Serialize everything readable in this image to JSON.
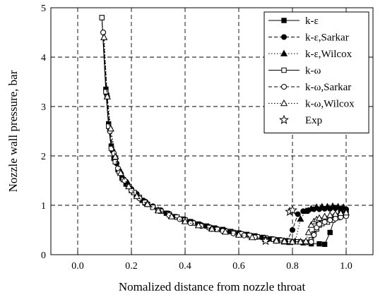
{
  "chart_data": {
    "type": "line",
    "title": "",
    "xlabel": "Nomalized distance from nozzle throat",
    "ylabel": "Nozzle wall pressure, bar",
    "xlim": [
      -0.1,
      1.1
    ],
    "ylim": [
      0,
      5
    ],
    "x_ticks": [
      0.0,
      0.2,
      0.4,
      0.6,
      0.8,
      1.0
    ],
    "x_tick_labels": [
      "0.0",
      "0.2",
      "0.4",
      "0.6",
      "0.8",
      "1.0"
    ],
    "y_ticks": [
      0,
      1,
      2,
      3,
      4,
      5
    ],
    "y_tick_labels": [
      "0",
      "1",
      "2",
      "3",
      "4",
      "5"
    ],
    "grid": "dashed",
    "legend_position": "top-right",
    "series": [
      {
        "name": "k-ε",
        "line": "solid",
        "marker": "square-filled",
        "x": [
          0.09,
          0.105,
          0.115,
          0.125,
          0.135,
          0.15,
          0.165,
          0.18,
          0.2,
          0.22,
          0.24,
          0.26,
          0.28,
          0.3,
          0.33,
          0.36,
          0.39,
          0.42,
          0.45,
          0.48,
          0.51,
          0.54,
          0.57,
          0.6,
          0.63,
          0.66,
          0.69,
          0.72,
          0.75,
          0.78,
          0.81,
          0.84,
          0.87,
          0.9,
          0.92,
          0.94,
          0.96,
          0.98,
          1.0
        ],
        "values": [
          4.8,
          3.35,
          2.65,
          2.2,
          1.95,
          1.72,
          1.55,
          1.43,
          1.3,
          1.2,
          1.1,
          1.02,
          0.96,
          0.9,
          0.84,
          0.77,
          0.72,
          0.67,
          0.62,
          0.58,
          0.54,
          0.51,
          0.47,
          0.44,
          0.41,
          0.38,
          0.35,
          0.32,
          0.3,
          0.28,
          0.26,
          0.24,
          0.22,
          0.22,
          0.21,
          0.45,
          0.78,
          0.85,
          0.88
        ]
      },
      {
        "name": "k-ε,Sarkar",
        "line": "dashed",
        "marker": "circle-filled",
        "x": [
          0.095,
          0.108,
          0.12,
          0.13,
          0.145,
          0.16,
          0.18,
          0.2,
          0.22,
          0.25,
          0.28,
          0.31,
          0.34,
          0.37,
          0.4,
          0.43,
          0.46,
          0.49,
          0.52,
          0.55,
          0.58,
          0.61,
          0.64,
          0.67,
          0.7,
          0.73,
          0.76,
          0.78,
          0.8,
          0.82,
          0.84,
          0.86,
          0.88,
          0.9,
          0.92,
          0.94,
          0.96,
          0.98,
          1.0
        ],
        "values": [
          4.5,
          3.25,
          2.55,
          2.1,
          1.85,
          1.65,
          1.48,
          1.33,
          1.23,
          1.08,
          0.98,
          0.9,
          0.83,
          0.76,
          0.71,
          0.65,
          0.6,
          0.56,
          0.52,
          0.49,
          0.45,
          0.42,
          0.39,
          0.36,
          0.33,
          0.31,
          0.29,
          0.28,
          0.5,
          0.82,
          0.88,
          0.9,
          0.92,
          0.92,
          0.93,
          0.93,
          0.94,
          0.93,
          0.92
        ]
      },
      {
        "name": "k-ε,Wilcox",
        "line": "dotted",
        "marker": "triangle-filled",
        "x": [
          0.098,
          0.11,
          0.123,
          0.14,
          0.16,
          0.19,
          0.22,
          0.26,
          0.3,
          0.35,
          0.4,
          0.45,
          0.5,
          0.55,
          0.6,
          0.65,
          0.7,
          0.74,
          0.77,
          0.79,
          0.81,
          0.83,
          0.85,
          0.87,
          0.89,
          0.91,
          0.93,
          0.95,
          0.97,
          0.99
        ],
        "values": [
          4.4,
          3.2,
          2.55,
          2.0,
          1.68,
          1.42,
          1.22,
          1.04,
          0.9,
          0.78,
          0.68,
          0.6,
          0.53,
          0.47,
          0.41,
          0.36,
          0.31,
          0.28,
          0.26,
          0.25,
          0.27,
          0.72,
          0.88,
          0.93,
          0.96,
          0.97,
          0.97,
          0.98,
          0.97,
          0.96
        ]
      },
      {
        "name": "k-ω",
        "line": "solid",
        "marker": "square-open",
        "x": [
          0.09,
          0.105,
          0.115,
          0.125,
          0.14,
          0.155,
          0.17,
          0.19,
          0.21,
          0.23,
          0.25,
          0.28,
          0.31,
          0.34,
          0.37,
          0.4,
          0.43,
          0.46,
          0.49,
          0.52,
          0.55,
          0.58,
          0.61,
          0.64,
          0.67,
          0.7,
          0.73,
          0.76,
          0.79,
          0.82,
          0.84,
          0.86,
          0.87,
          0.88,
          0.89,
          0.9,
          0.91,
          0.93,
          0.95,
          0.97,
          0.99
        ],
        "values": [
          4.8,
          3.3,
          2.6,
          2.15,
          1.88,
          1.68,
          1.52,
          1.38,
          1.26,
          1.16,
          1.06,
          0.96,
          0.88,
          0.82,
          0.76,
          0.7,
          0.64,
          0.59,
          0.55,
          0.51,
          0.48,
          0.45,
          0.42,
          0.39,
          0.36,
          0.34,
          0.31,
          0.29,
          0.27,
          0.26,
          0.25,
          0.25,
          0.3,
          0.42,
          0.52,
          0.6,
          0.63,
          0.66,
          0.7,
          0.75,
          0.8
        ]
      },
      {
        "name": "k-ω,Sarkar",
        "line": "dashed",
        "marker": "circle-open",
        "x": [
          0.095,
          0.11,
          0.12,
          0.135,
          0.15,
          0.175,
          0.2,
          0.23,
          0.26,
          0.3,
          0.34,
          0.38,
          0.42,
          0.46,
          0.5,
          0.54,
          0.58,
          0.62,
          0.66,
          0.7,
          0.74,
          0.77,
          0.8,
          0.83,
          0.85,
          0.87,
          0.88,
          0.89,
          0.9,
          0.92,
          0.94,
          0.96,
          0.98,
          1.0
        ],
        "values": [
          4.5,
          3.2,
          2.5,
          2.05,
          1.75,
          1.5,
          1.3,
          1.14,
          1.02,
          0.9,
          0.8,
          0.72,
          0.64,
          0.58,
          0.52,
          0.48,
          0.43,
          0.39,
          0.35,
          0.31,
          0.28,
          0.27,
          0.26,
          0.26,
          0.25,
          0.26,
          0.4,
          0.55,
          0.62,
          0.66,
          0.7,
          0.73,
          0.76,
          0.78
        ]
      },
      {
        "name": "k-ω,Wilcox",
        "line": "dotted",
        "marker": "triangle-open",
        "x": [
          0.098,
          0.11,
          0.123,
          0.14,
          0.16,
          0.19,
          0.22,
          0.26,
          0.3,
          0.35,
          0.4,
          0.45,
          0.5,
          0.55,
          0.6,
          0.65,
          0.7,
          0.74,
          0.77,
          0.8,
          0.83,
          0.85,
          0.86,
          0.87,
          0.88,
          0.89,
          0.9,
          0.92,
          0.94,
          0.96,
          0.98,
          1.0
        ],
        "values": [
          4.4,
          3.2,
          2.55,
          1.98,
          1.65,
          1.38,
          1.18,
          1.02,
          0.89,
          0.77,
          0.67,
          0.59,
          0.52,
          0.46,
          0.4,
          0.35,
          0.31,
          0.28,
          0.27,
          0.26,
          0.26,
          0.27,
          0.45,
          0.6,
          0.67,
          0.71,
          0.74,
          0.77,
          0.8,
          0.82,
          0.84,
          0.85
        ]
      },
      {
        "name": "Exp",
        "line": "none",
        "marker": "star-open",
        "x": [
          0.7,
          0.79,
          0.8
        ],
        "values": [
          0.28,
          0.87,
          0.9
        ]
      }
    ]
  }
}
